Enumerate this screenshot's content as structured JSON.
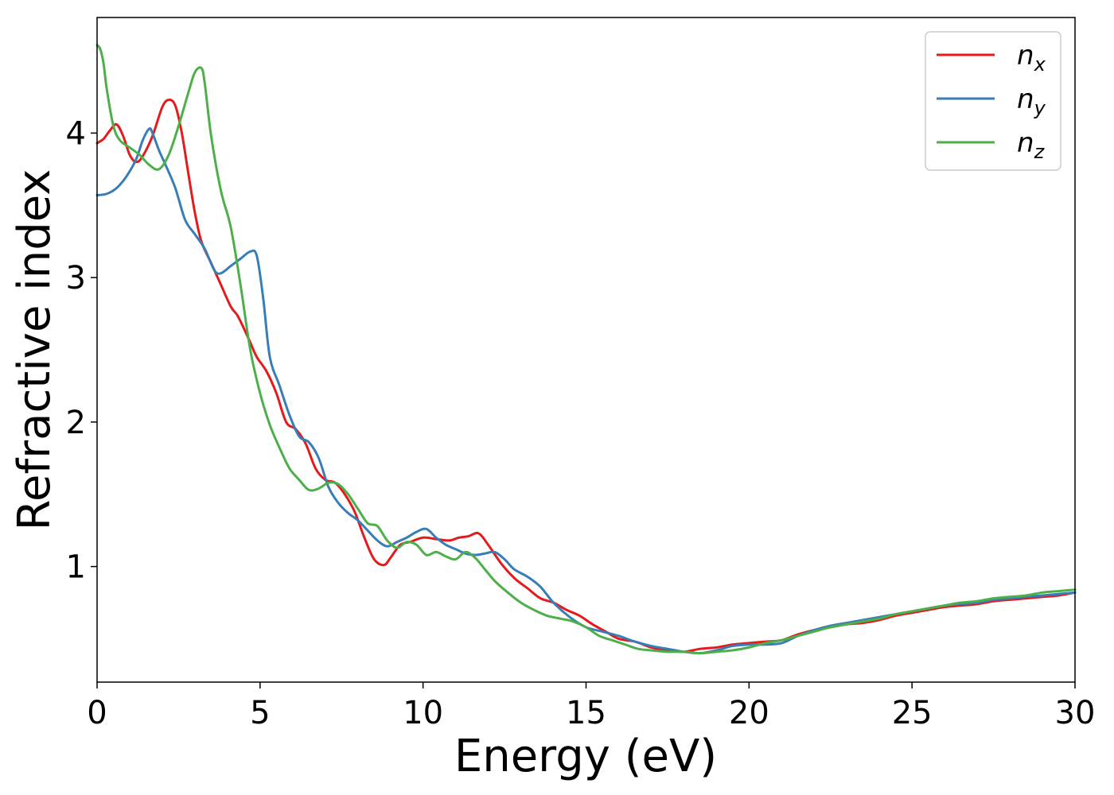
{
  "chart_data": {
    "type": "line",
    "xlabel": "Energy (eV)",
    "ylabel": "Refractive index",
    "xlim": [
      0,
      30
    ],
    "ylim": [
      0.2,
      4.8
    ],
    "xticks": [
      0,
      5,
      10,
      15,
      20,
      25,
      30
    ],
    "yticks": [
      1,
      2,
      3,
      4
    ],
    "grid": false,
    "legend_position": "top-right",
    "series": [
      {
        "name": "n",
        "subscript": "x",
        "color": "#e41a1c",
        "x": [
          0,
          0.2,
          0.4,
          0.6,
          0.8,
          1.0,
          1.2,
          1.4,
          1.7,
          2.0,
          2.2,
          2.4,
          2.6,
          2.8,
          3.0,
          3.2,
          3.5,
          3.8,
          4.1,
          4.3,
          4.5,
          4.7,
          4.9,
          5.2,
          5.5,
          5.8,
          6.1,
          6.4,
          6.7,
          7.0,
          7.3,
          7.6,
          7.9,
          8.2,
          8.5,
          8.8,
          9.0,
          9.3,
          9.6,
          10.0,
          10.4,
          10.8,
          11.1,
          11.4,
          11.7,
          12.0,
          12.4,
          12.8,
          13.2,
          13.6,
          14.0,
          14.4,
          14.8,
          15.2,
          15.6,
          16.0,
          16.5,
          17.0,
          17.5,
          18.0,
          18.5,
          19.0,
          19.5,
          20.0,
          20.5,
          21.0,
          21.5,
          22.0,
          22.5,
          23.0,
          23.5,
          24.0,
          24.5,
          25.0,
          25.5,
          26.0,
          26.5,
          27.0,
          27.5,
          28.0,
          28.5,
          29.0,
          29.5,
          30.0
        ],
        "y": [
          3.93,
          3.96,
          4.02,
          4.06,
          3.98,
          3.85,
          3.8,
          3.84,
          3.98,
          4.18,
          4.23,
          4.19,
          4.0,
          3.72,
          3.45,
          3.25,
          3.1,
          2.95,
          2.8,
          2.74,
          2.65,
          2.55,
          2.45,
          2.35,
          2.2,
          2.0,
          1.95,
          1.85,
          1.68,
          1.6,
          1.58,
          1.5,
          1.38,
          1.2,
          1.05,
          1.01,
          1.06,
          1.15,
          1.17,
          1.2,
          1.19,
          1.18,
          1.2,
          1.21,
          1.23,
          1.15,
          1.02,
          0.92,
          0.85,
          0.78,
          0.75,
          0.7,
          0.66,
          0.6,
          0.55,
          0.5,
          0.48,
          0.44,
          0.42,
          0.41,
          0.43,
          0.44,
          0.46,
          0.47,
          0.48,
          0.49,
          0.53,
          0.56,
          0.58,
          0.6,
          0.61,
          0.63,
          0.66,
          0.68,
          0.7,
          0.72,
          0.73,
          0.74,
          0.76,
          0.77,
          0.78,
          0.79,
          0.8,
          0.82
        ]
      },
      {
        "name": "n",
        "subscript": "y",
        "color": "#377eb8",
        "x": [
          0,
          0.3,
          0.6,
          0.9,
          1.2,
          1.4,
          1.6,
          1.7,
          1.9,
          2.1,
          2.4,
          2.7,
          3.0,
          3.3,
          3.6,
          3.8,
          4.1,
          4.4,
          4.7,
          4.9,
          5.1,
          5.3,
          5.6,
          5.9,
          6.2,
          6.5,
          6.8,
          7.1,
          7.4,
          7.7,
          8.0,
          8.3,
          8.6,
          8.9,
          9.2,
          9.5,
          9.8,
          10.1,
          10.4,
          10.7,
          11.0,
          11.3,
          11.6,
          11.9,
          12.2,
          12.5,
          12.8,
          13.2,
          13.6,
          14.0,
          14.5,
          15.0,
          15.5,
          16.0,
          16.5,
          17.0,
          17.5,
          18.0,
          18.5,
          19.0,
          19.5,
          20.0,
          20.5,
          21.0,
          21.5,
          22.0,
          22.5,
          23.0,
          23.5,
          24.0,
          24.5,
          25.0,
          25.5,
          26.0,
          26.5,
          27.0,
          27.5,
          28.0,
          28.5,
          29.0,
          29.5,
          30.0
        ],
        "y": [
          3.57,
          3.58,
          3.62,
          3.7,
          3.82,
          3.95,
          4.03,
          4.0,
          3.88,
          3.78,
          3.62,
          3.4,
          3.3,
          3.2,
          3.05,
          3.03,
          3.08,
          3.13,
          3.18,
          3.15,
          2.85,
          2.45,
          2.25,
          2.05,
          1.9,
          1.86,
          1.75,
          1.55,
          1.44,
          1.37,
          1.32,
          1.25,
          1.18,
          1.14,
          1.17,
          1.2,
          1.24,
          1.26,
          1.2,
          1.15,
          1.12,
          1.09,
          1.08,
          1.09,
          1.1,
          1.05,
          0.98,
          0.93,
          0.86,
          0.75,
          0.65,
          0.58,
          0.55,
          0.52,
          0.48,
          0.45,
          0.43,
          0.41,
          0.4,
          0.42,
          0.45,
          0.46,
          0.46,
          0.47,
          0.52,
          0.56,
          0.59,
          0.61,
          0.63,
          0.65,
          0.67,
          0.69,
          0.71,
          0.73,
          0.74,
          0.75,
          0.77,
          0.78,
          0.79,
          0.8,
          0.81,
          0.82
        ]
      },
      {
        "name": "n",
        "subscript": "z",
        "color": "#4daf4a",
        "x": [
          0,
          0.1,
          0.2,
          0.3,
          0.5,
          0.7,
          1.0,
          1.3,
          1.6,
          1.9,
          2.2,
          2.5,
          2.8,
          3.0,
          3.2,
          3.3,
          3.5,
          3.8,
          4.1,
          4.4,
          4.7,
          5.0,
          5.3,
          5.6,
          5.9,
          6.2,
          6.5,
          6.8,
          7.1,
          7.4,
          7.7,
          8.0,
          8.3,
          8.6,
          8.9,
          9.2,
          9.5,
          9.8,
          10.1,
          10.4,
          10.7,
          11.0,
          11.3,
          11.6,
          11.9,
          12.2,
          12.6,
          13.0,
          13.4,
          13.8,
          14.2,
          14.6,
          15.0,
          15.4,
          15.8,
          16.2,
          16.6,
          17.0,
          17.5,
          18.0,
          18.5,
          19.0,
          19.5,
          20.0,
          20.5,
          21.0,
          21.5,
          22.0,
          22.5,
          23.0,
          23.5,
          24.0,
          24.5,
          25.0,
          25.5,
          26.0,
          26.5,
          27.0,
          27.5,
          28.0,
          28.5,
          29.0,
          29.5,
          30.0
        ],
        "y": [
          4.61,
          4.58,
          4.48,
          4.3,
          4.05,
          3.95,
          3.9,
          3.85,
          3.78,
          3.75,
          3.85,
          4.05,
          4.28,
          4.42,
          4.45,
          4.35,
          3.98,
          3.6,
          3.35,
          2.95,
          2.5,
          2.2,
          1.98,
          1.82,
          1.68,
          1.6,
          1.53,
          1.54,
          1.58,
          1.57,
          1.5,
          1.4,
          1.3,
          1.28,
          1.18,
          1.13,
          1.17,
          1.15,
          1.08,
          1.1,
          1.07,
          1.05,
          1.1,
          1.06,
          0.98,
          0.9,
          0.82,
          0.75,
          0.7,
          0.66,
          0.64,
          0.62,
          0.58,
          0.52,
          0.49,
          0.46,
          0.43,
          0.42,
          0.41,
          0.41,
          0.4,
          0.41,
          0.42,
          0.44,
          0.47,
          0.49,
          0.52,
          0.55,
          0.58,
          0.6,
          0.62,
          0.64,
          0.67,
          0.69,
          0.71,
          0.73,
          0.75,
          0.76,
          0.78,
          0.79,
          0.8,
          0.82,
          0.83,
          0.84
        ]
      }
    ]
  }
}
